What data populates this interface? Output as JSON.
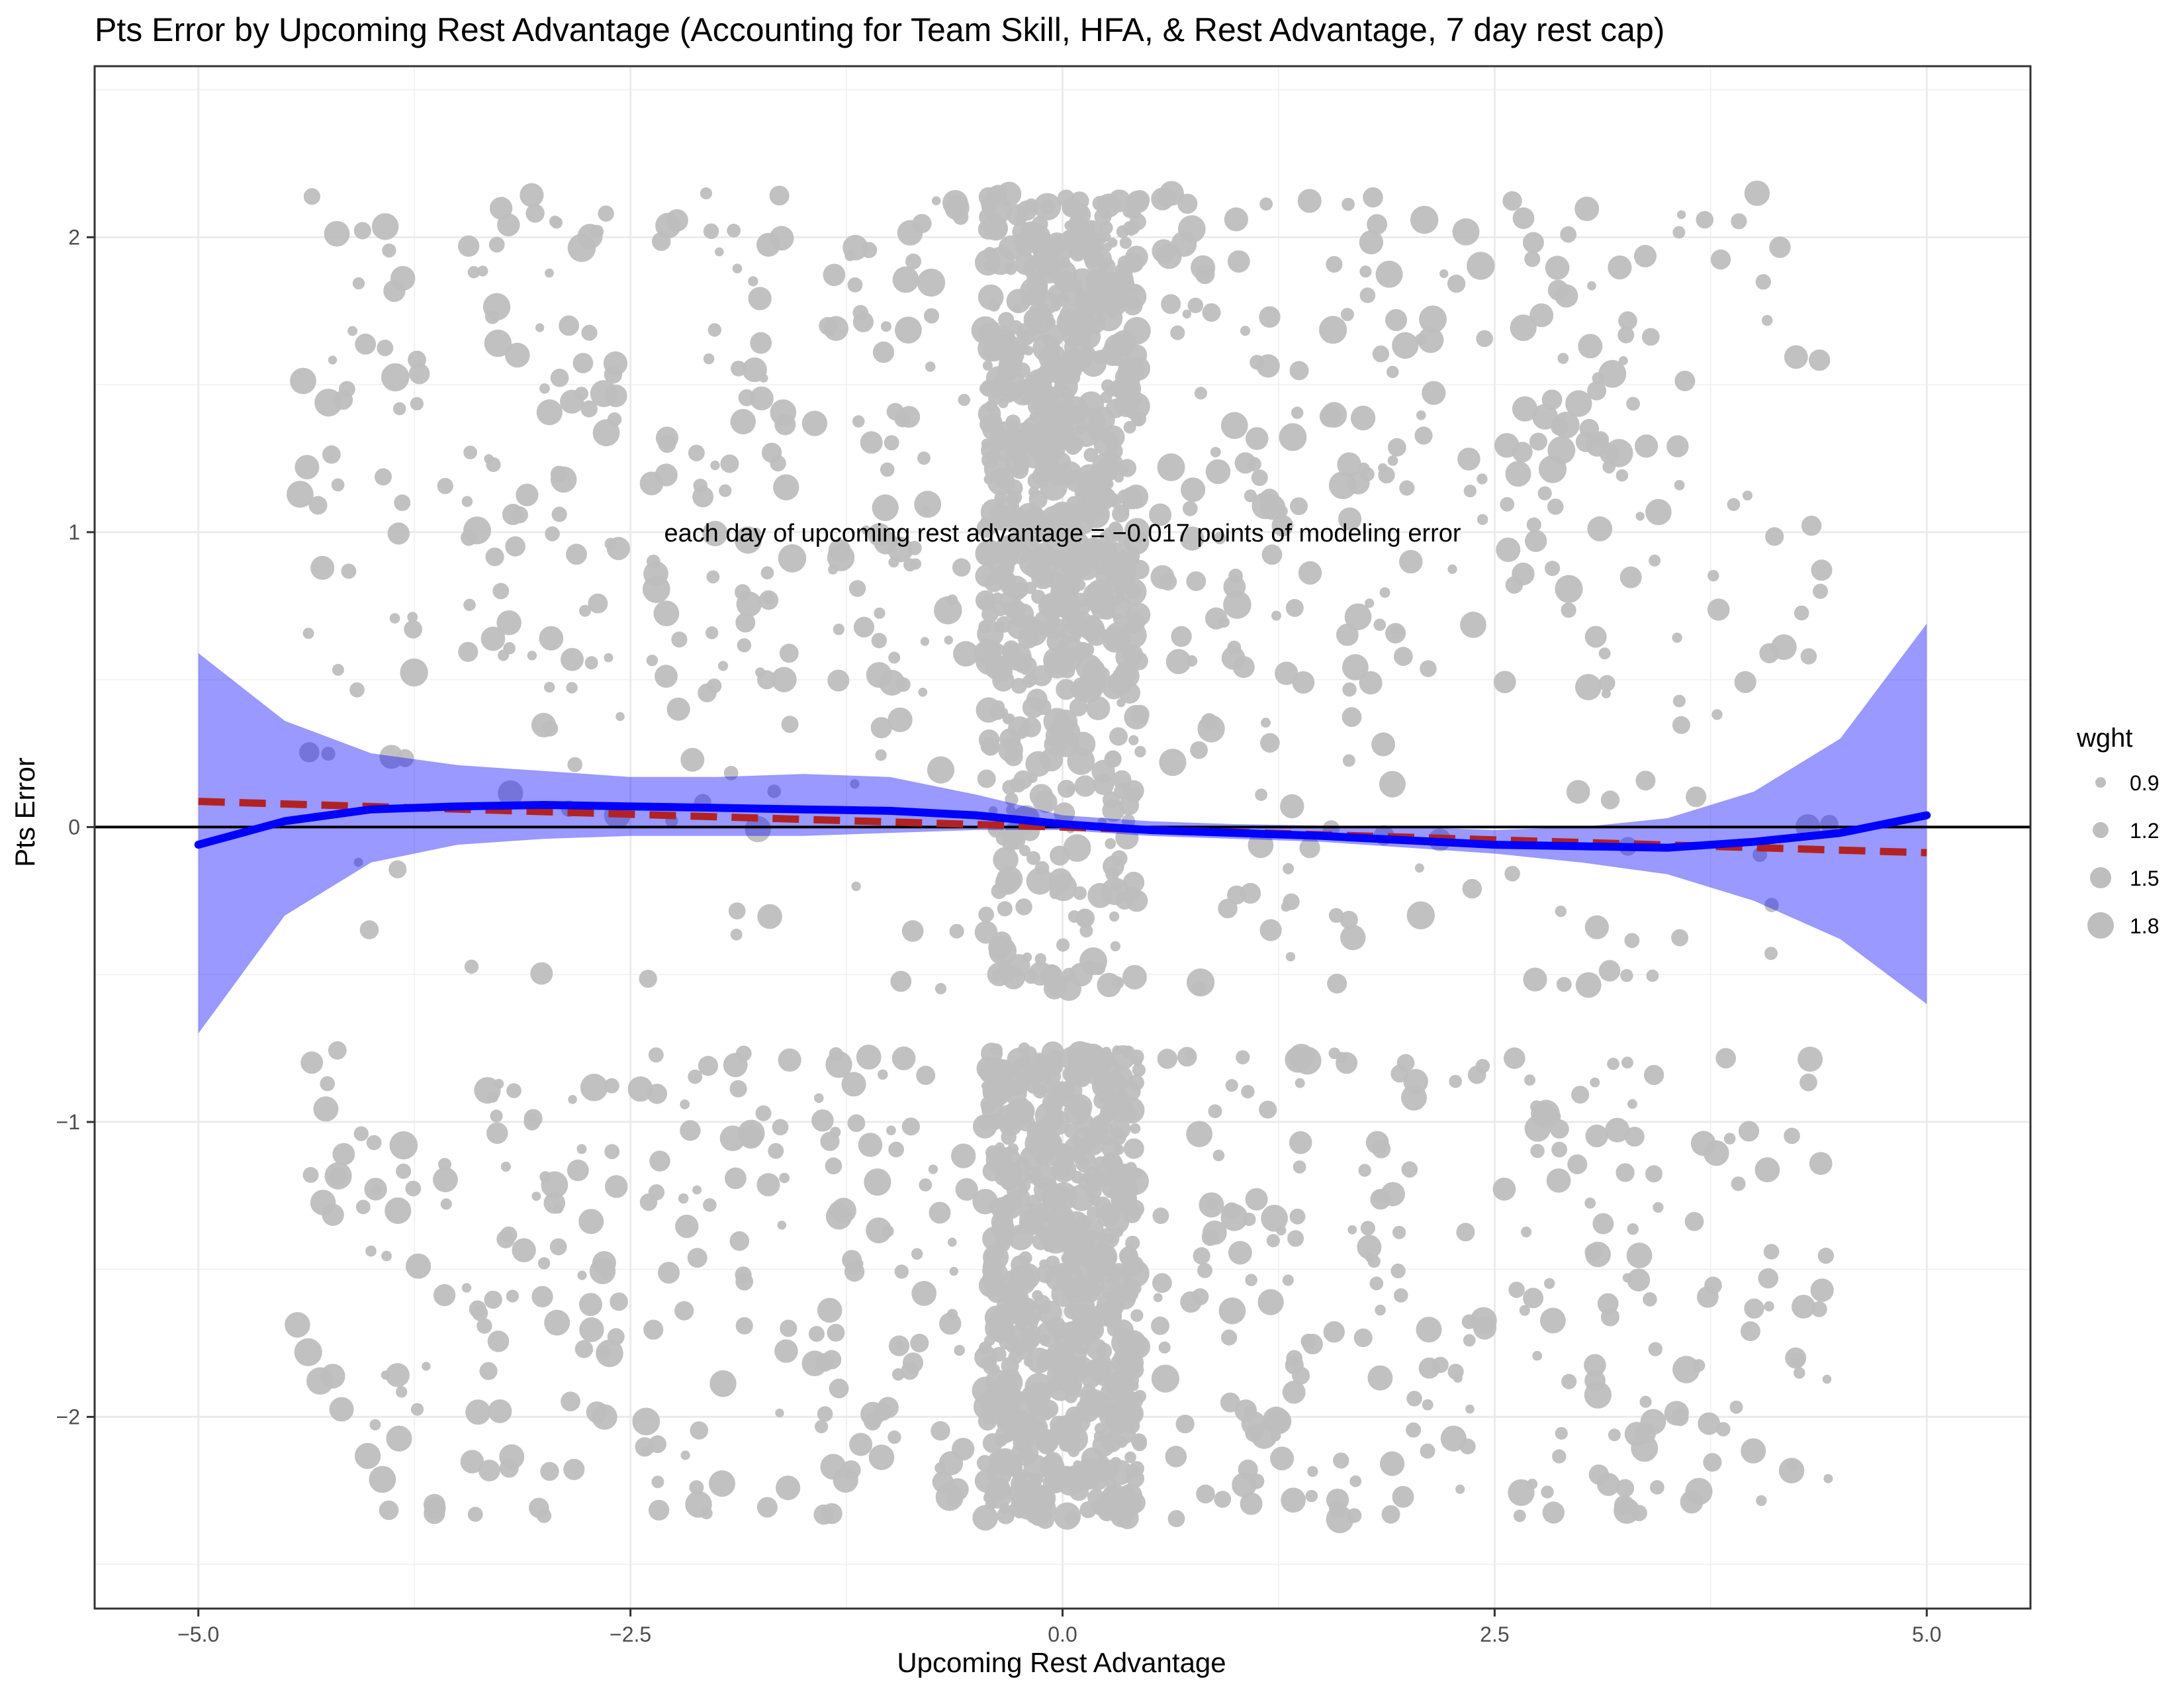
{
  "chart_data": {
    "type": "scatter",
    "title": "Pts Error by Upcoming Rest Advantage (Accounting for Team Skill, HFA, & Rest Advantage, 7 day rest cap)",
    "xlabel": "Upcoming Rest Advantage",
    "ylabel": "Pts Error",
    "xlim": [
      -5.6,
      5.6
    ],
    "ylim": [
      -2.65,
      2.58
    ],
    "x_ticks": [
      -5.0,
      -2.5,
      0.0,
      2.5,
      5.0
    ],
    "x_tick_labels": [
      "−5.0",
      "−2.5",
      "0.0",
      "2.5",
      "5.0"
    ],
    "y_ticks": [
      -2,
      -1,
      0,
      1,
      2
    ],
    "y_tick_labels": [
      "−2",
      "−1",
      "0",
      "1",
      "2"
    ],
    "grid": true,
    "annotation": "each day of upcoming rest advantage = −0.017 points of modeling error",
    "annotation_position": {
      "x": 0.0,
      "y": 1.0
    },
    "reference_line_y": 0,
    "point_color": "#bebebe",
    "point_opacity": "translucent",
    "point_clusters": [
      {
        "x_center": -4.0,
        "x_spread": 0.45,
        "count": 90
      },
      {
        "x_center": -3.0,
        "x_spread": 0.45,
        "count": 140
      },
      {
        "x_center": -2.0,
        "x_spread": 0.45,
        "count": 130
      },
      {
        "x_center": -1.0,
        "x_spread": 0.45,
        "count": 150
      },
      {
        "x_center": 0.0,
        "x_spread": 0.45,
        "count": 1400
      },
      {
        "x_center": 1.0,
        "x_spread": 0.45,
        "count": 160
      },
      {
        "x_center": 2.0,
        "x_spread": 0.45,
        "count": 130
      },
      {
        "x_center": 3.0,
        "x_spread": 0.45,
        "count": 150
      },
      {
        "x_center": 4.0,
        "x_spread": 0.45,
        "count": 80
      }
    ],
    "point_y_bands": [
      [
        0.45,
        2.15
      ],
      [
        -2.35,
        -0.75
      ],
      [
        -0.55,
        0.45
      ]
    ],
    "series": [
      {
        "type": "loess_fit",
        "color": "#0000ff",
        "x": [
          -5.0,
          -4.5,
          -4.0,
          -3.5,
          -3.0,
          -2.5,
          -2.0,
          -1.5,
          -1.0,
          -0.5,
          0.0,
          0.5,
          1.0,
          1.5,
          2.0,
          2.5,
          3.0,
          3.5,
          4.0,
          4.5,
          5.0
        ],
        "y": [
          -0.06,
          0.02,
          0.06,
          0.07,
          0.075,
          0.07,
          0.065,
          0.06,
          0.055,
          0.04,
          0.01,
          -0.01,
          -0.02,
          -0.03,
          -0.045,
          -0.06,
          -0.065,
          -0.07,
          -0.05,
          -0.02,
          0.04
        ],
        "ci_lower": [
          -0.7,
          -0.3,
          -0.12,
          -0.06,
          -0.04,
          -0.03,
          -0.03,
          -0.03,
          -0.02,
          -0.01,
          -0.01,
          -0.03,
          -0.04,
          -0.05,
          -0.07,
          -0.09,
          -0.12,
          -0.16,
          -0.25,
          -0.38,
          -0.6
        ],
        "ci_upper": [
          0.59,
          0.36,
          0.25,
          0.21,
          0.19,
          0.17,
          0.17,
          0.18,
          0.17,
          0.11,
          0.04,
          0.02,
          0.01,
          0.005,
          0.0,
          -0.01,
          0.0,
          0.03,
          0.12,
          0.3,
          0.69
        ]
      },
      {
        "type": "linear_fit",
        "color": "#b22222",
        "line_style": "dashed",
        "x": [
          -5.0,
          5.0
        ],
        "y": [
          0.087,
          -0.087
        ]
      }
    ],
    "legend": {
      "title": "wght",
      "placement": "right",
      "entries": [
        {
          "label": "0.9",
          "value": 0.9
        },
        {
          "label": "1.2",
          "value": 1.2
        },
        {
          "label": "1.5",
          "value": 1.5
        },
        {
          "label": "1.8",
          "value": 1.8
        }
      ]
    }
  }
}
